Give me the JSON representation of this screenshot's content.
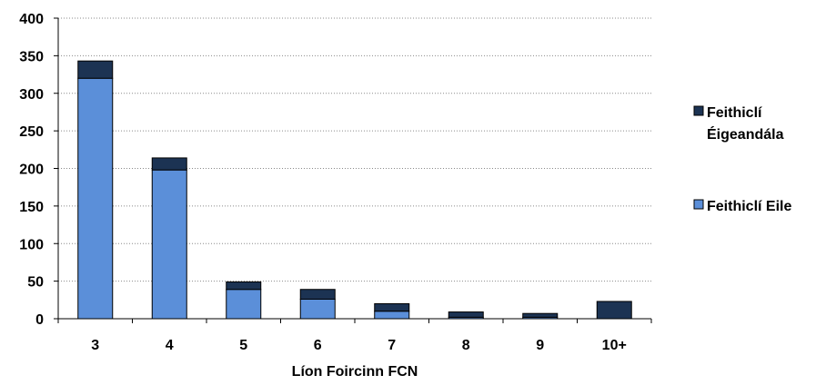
{
  "chart_data": {
    "type": "bar",
    "stacked": true,
    "categories": [
      "3",
      "4",
      "5",
      "6",
      "7",
      "8",
      "9",
      "10+"
    ],
    "series": [
      {
        "name": "Feithiclí Eile",
        "values": [
          320,
          198,
          39,
          26,
          10,
          2,
          2,
          0
        ],
        "color": "#5b8fd9"
      },
      {
        "name": "Feithiclí Éigeandála",
        "values": [
          23,
          16,
          10,
          13,
          10,
          7,
          5,
          23
        ],
        "color": "#1c3353"
      }
    ],
    "legend": [
      {
        "lines": [
          "Feithiclí",
          "Éigeandála"
        ],
        "color": "#1c3353"
      },
      {
        "lines": [
          "Feithiclí Eile"
        ],
        "color": "#5b8fd9"
      }
    ],
    "xlabel": "Líon Foircinn FCN",
    "ylabel": "",
    "ylim": [
      0,
      400
    ],
    "yticks": [
      0,
      50,
      100,
      150,
      200,
      250,
      300,
      350,
      400
    ],
    "grid": "horizontal-dotted",
    "legend_position": "right"
  }
}
